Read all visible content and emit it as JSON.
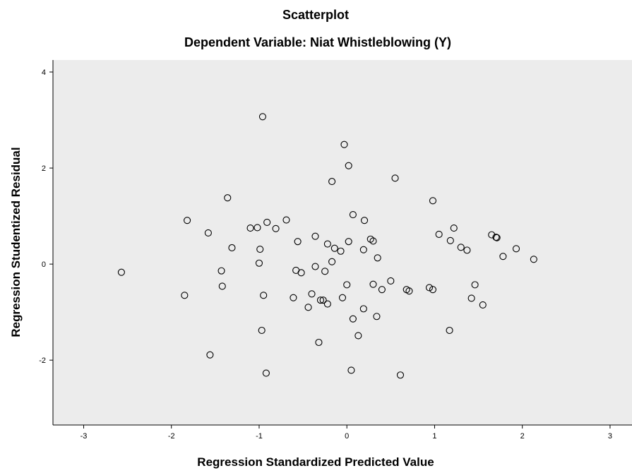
{
  "chart_data": {
    "type": "scatter",
    "title": "Scatterplot",
    "subtitle": "Dependent Variable: Niat Whistleblowing (Y)",
    "xlabel": "Regression Standardized Predicted Value",
    "ylabel": "Regression Studentized Residual",
    "xlim": [
      -3.35,
      3.25
    ],
    "ylim": [
      -3.35,
      4.25
    ],
    "x_ticks": [
      -3,
      -2,
      -1,
      0,
      1,
      2,
      3
    ],
    "y_ticks": [
      -2,
      0,
      2,
      4
    ],
    "grid": false,
    "colors": {
      "plot_background": "#ececec",
      "marker": "#000000",
      "axis": "#000000"
    },
    "points": [
      {
        "x": -0.96,
        "y": 3.07
      },
      {
        "x": -0.03,
        "y": 2.49
      },
      {
        "x": 0.02,
        "y": 2.05
      },
      {
        "x": 0.55,
        "y": 1.79
      },
      {
        "x": -0.17,
        "y": 1.72
      },
      {
        "x": 0.98,
        "y": 1.32
      },
      {
        "x": -1.36,
        "y": 1.38
      },
      {
        "x": -1.82,
        "y": 0.91
      },
      {
        "x": -0.91,
        "y": 0.87
      },
      {
        "x": -0.69,
        "y": 0.92
      },
      {
        "x": 0.07,
        "y": 1.03
      },
      {
        "x": 0.2,
        "y": 0.91
      },
      {
        "x": -1.1,
        "y": 0.75
      },
      {
        "x": -1.02,
        "y": 0.76
      },
      {
        "x": -0.81,
        "y": 0.74
      },
      {
        "x": -1.58,
        "y": 0.65
      },
      {
        "x": -0.36,
        "y": 0.58
      },
      {
        "x": -0.56,
        "y": 0.47
      },
      {
        "x": 0.02,
        "y": 0.47
      },
      {
        "x": 0.27,
        "y": 0.52
      },
      {
        "x": 0.3,
        "y": 0.48
      },
      {
        "x": -0.22,
        "y": 0.42
      },
      {
        "x": -0.14,
        "y": 0.33
      },
      {
        "x": -0.07,
        "y": 0.27
      },
      {
        "x": 0.19,
        "y": 0.3
      },
      {
        "x": -1.31,
        "y": 0.34
      },
      {
        "x": -0.99,
        "y": 0.31
      },
      {
        "x": 1.05,
        "y": 0.62
      },
      {
        "x": 1.22,
        "y": 0.75
      },
      {
        "x": 1.18,
        "y": 0.49
      },
      {
        "x": 1.3,
        "y": 0.35
      },
      {
        "x": 1.37,
        "y": 0.29
      },
      {
        "x": 1.65,
        "y": 0.61
      },
      {
        "x": 1.7,
        "y": 0.56
      },
      {
        "x": 1.71,
        "y": 0.55
      },
      {
        "x": 1.93,
        "y": 0.32
      },
      {
        "x": 1.78,
        "y": 0.16
      },
      {
        "x": 2.13,
        "y": 0.1
      },
      {
        "x": 0.35,
        "y": 0.13
      },
      {
        "x": -0.17,
        "y": 0.05
      },
      {
        "x": -1.0,
        "y": 0.02
      },
      {
        "x": -0.36,
        "y": -0.05
      },
      {
        "x": -0.58,
        "y": -0.13
      },
      {
        "x": -0.52,
        "y": -0.18
      },
      {
        "x": -0.25,
        "y": -0.15
      },
      {
        "x": -1.43,
        "y": -0.14
      },
      {
        "x": -2.57,
        "y": -0.17
      },
      {
        "x": 0.5,
        "y": -0.35
      },
      {
        "x": 0.3,
        "y": -0.42
      },
      {
        "x": 0.4,
        "y": -0.53
      },
      {
        "x": 0.0,
        "y": -0.43
      },
      {
        "x": 0.68,
        "y": -0.53
      },
      {
        "x": 0.71,
        "y": -0.56
      },
      {
        "x": 0.94,
        "y": -0.49
      },
      {
        "x": 0.98,
        "y": -0.53
      },
      {
        "x": 1.46,
        "y": -0.43
      },
      {
        "x": 1.42,
        "y": -0.71
      },
      {
        "x": 1.55,
        "y": -0.85
      },
      {
        "x": -1.42,
        "y": -0.46
      },
      {
        "x": -1.85,
        "y": -0.65
      },
      {
        "x": -0.95,
        "y": -0.65
      },
      {
        "x": -0.61,
        "y": -0.7
      },
      {
        "x": -0.4,
        "y": -0.62
      },
      {
        "x": -0.3,
        "y": -0.75
      },
      {
        "x": -0.27,
        "y": -0.75
      },
      {
        "x": -0.05,
        "y": -0.7
      },
      {
        "x": -0.22,
        "y": -0.83
      },
      {
        "x": -0.44,
        "y": -0.9
      },
      {
        "x": 0.19,
        "y": -0.93
      },
      {
        "x": 0.34,
        "y": -1.09
      },
      {
        "x": 0.07,
        "y": -1.14
      },
      {
        "x": -0.97,
        "y": -1.38
      },
      {
        "x": 0.13,
        "y": -1.49
      },
      {
        "x": 1.17,
        "y": -1.38
      },
      {
        "x": -0.32,
        "y": -1.63
      },
      {
        "x": -1.56,
        "y": -1.89
      },
      {
        "x": -0.92,
        "y": -2.27
      },
      {
        "x": 0.05,
        "y": -2.21
      },
      {
        "x": 0.61,
        "y": -2.31
      }
    ]
  }
}
